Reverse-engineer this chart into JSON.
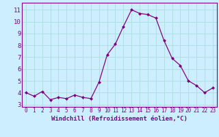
{
  "x": [
    0,
    1,
    2,
    3,
    4,
    5,
    6,
    7,
    8,
    9,
    10,
    11,
    12,
    13,
    14,
    15,
    16,
    17,
    18,
    19,
    20,
    21,
    22,
    23
  ],
  "y": [
    4.0,
    3.7,
    4.1,
    3.4,
    3.6,
    3.5,
    3.8,
    3.6,
    3.5,
    4.9,
    7.2,
    8.1,
    9.6,
    11.0,
    10.7,
    10.6,
    10.3,
    8.4,
    6.9,
    6.3,
    5.0,
    4.6,
    4.0,
    4.4
  ],
  "xlabel": "Windchill (Refroidissement éolien,°C)",
  "ylim": [
    2.8,
    11.6
  ],
  "xlim": [
    -0.5,
    23.5
  ],
  "yticks": [
    3,
    4,
    5,
    6,
    7,
    8,
    9,
    10,
    11
  ],
  "xticks": [
    0,
    1,
    2,
    3,
    4,
    5,
    6,
    7,
    8,
    9,
    10,
    11,
    12,
    13,
    14,
    15,
    16,
    17,
    18,
    19,
    20,
    21,
    22,
    23
  ],
  "line_color": "#800080",
  "marker": "D",
  "marker_size": 2.0,
  "bg_color": "#cceeff",
  "grid_color": "#aadddd",
  "axis_label_color": "#800080",
  "tick_color": "#800080",
  "xlabel_fontsize": 6.5,
  "ytick_fontsize": 6.5,
  "xtick_fontsize": 5.5,
  "spine_color": "#800080"
}
